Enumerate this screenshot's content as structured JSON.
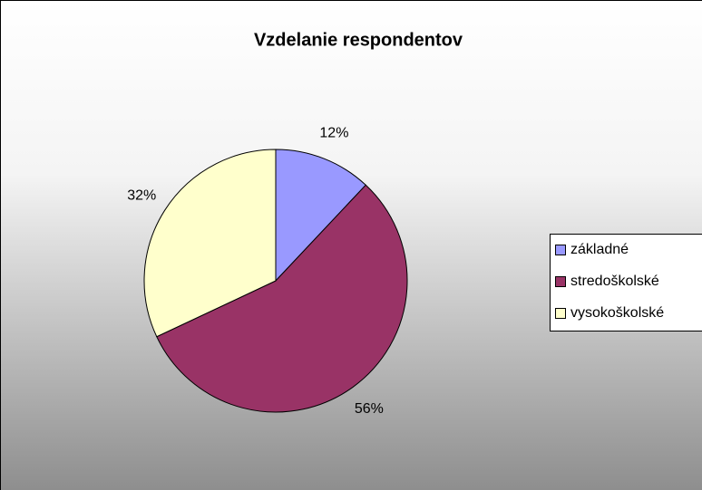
{
  "chart_data": {
    "type": "pie",
    "title": "Vzdelanie respondentov",
    "categories": [
      "základné",
      "stredoškolské",
      "vysokoškolské"
    ],
    "values": [
      12,
      56,
      32
    ],
    "value_labels": [
      "12%",
      "56%",
      "32%"
    ],
    "colors": [
      "#9999ff",
      "#993366",
      "#ffffcc"
    ],
    "legend": "right"
  }
}
